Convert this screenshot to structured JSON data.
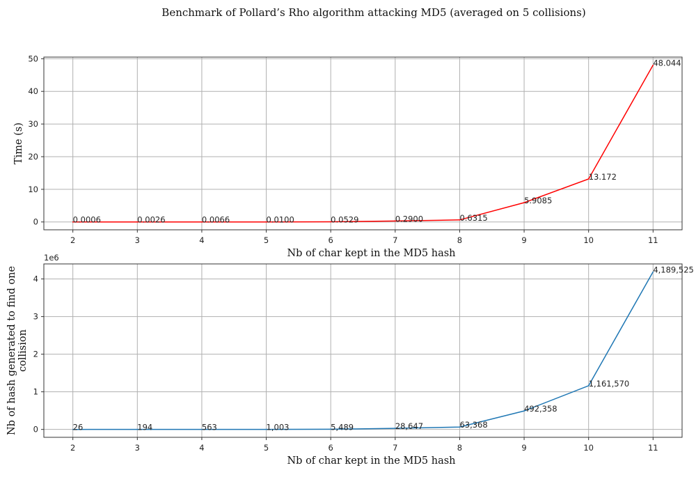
{
  "title": "Benchmark of Pollard’s Rho algorithm attacking MD5 (averaged on 5 collisions)",
  "chart_data": [
    {
      "type": "line",
      "xlabel": "Nb of char kept in the MD5 hash",
      "ylabel": "Time (s)",
      "x": [
        2,
        3,
        4,
        5,
        6,
        7,
        8,
        9,
        10,
        11
      ],
      "values": [
        0.0006,
        0.0026,
        0.0066,
        0.01,
        0.0529,
        0.29,
        0.6315,
        5.9085,
        13.172,
        48.044
      ],
      "data_labels": [
        "0.0006",
        "0.0026",
        "0.0066",
        "0.0100",
        "0.0529",
        "0.2900",
        "0.6315",
        "5.9085",
        "13.172",
        "48.044"
      ],
      "xticks": [
        "2",
        "3",
        "4",
        "5",
        "6",
        "7",
        "8",
        "9",
        "10",
        "11"
      ],
      "yticks": [
        0,
        10,
        20,
        30,
        40,
        50
      ],
      "ytick_labels": [
        "0",
        "10",
        "20",
        "30",
        "40",
        "50"
      ],
      "xlim": [
        1.55,
        11.45
      ],
      "ylim": [
        -2.4,
        50.5
      ],
      "color": "#ff0000",
      "grid": true,
      "offset_label": ""
    },
    {
      "type": "line",
      "xlabel": "Nb of char kept in the MD5 hash",
      "ylabel": [
        "Nb of hash generated to find one",
        "collision"
      ],
      "x": [
        2,
        3,
        4,
        5,
        6,
        7,
        8,
        9,
        10,
        11
      ],
      "values": [
        26,
        194,
        563,
        1003,
        5489,
        28647,
        63368,
        492358,
        1161570,
        4189525
      ],
      "data_labels": [
        "26",
        "194",
        "563",
        "1,003",
        "5,489",
        "28,647",
        "63,368",
        "492,358",
        "1,161,570",
        "4,189,525"
      ],
      "xticks": [
        "2",
        "3",
        "4",
        "5",
        "6",
        "7",
        "8",
        "9",
        "10",
        "11"
      ],
      "yticks": [
        0,
        1000000,
        2000000,
        3000000,
        4000000
      ],
      "ytick_labels": [
        "0",
        "1",
        "2",
        "3",
        "4"
      ],
      "xlim": [
        1.55,
        11.45
      ],
      "ylim": [
        -210000,
        4400000
      ],
      "color": "#1f77b4",
      "grid": true,
      "offset_label": "1e6"
    }
  ]
}
